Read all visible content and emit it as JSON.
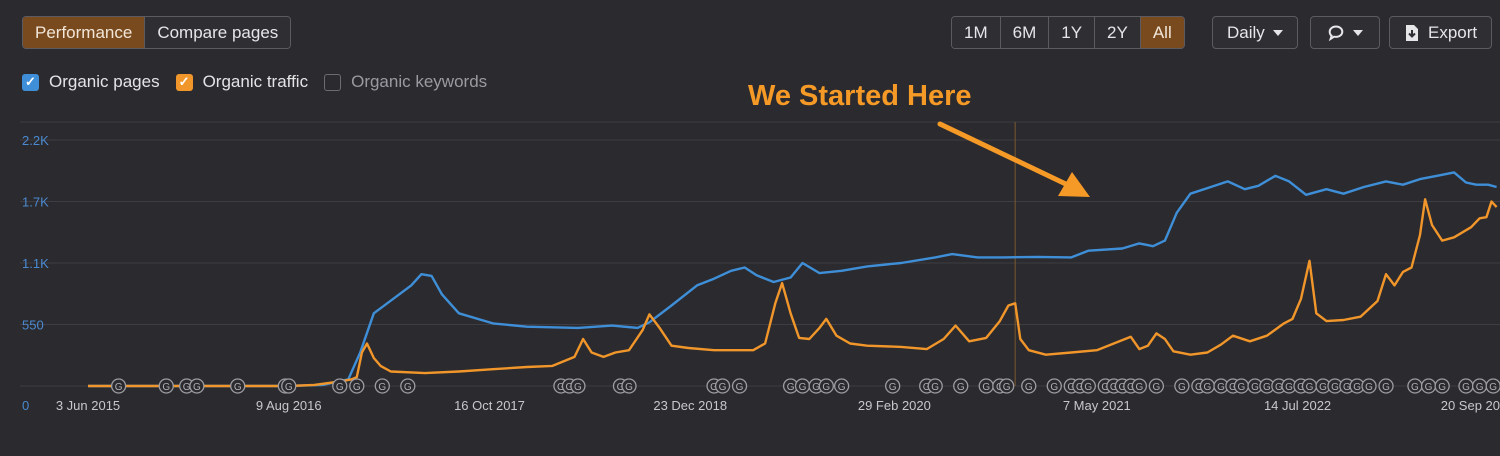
{
  "tabs": [
    {
      "label": "Performance",
      "active": true
    },
    {
      "label": "Compare pages",
      "active": false
    }
  ],
  "ranges": [
    {
      "label": "1M",
      "active": false
    },
    {
      "label": "6M",
      "active": false
    },
    {
      "label": "1Y",
      "active": false
    },
    {
      "label": "2Y",
      "active": false
    },
    {
      "label": "All",
      "active": true
    }
  ],
  "interval": {
    "label": "Daily"
  },
  "export": {
    "label": "Export"
  },
  "legend": [
    {
      "label": "Organic pages",
      "checked": true,
      "color": "#3f8fd8"
    },
    {
      "label": "Organic traffic",
      "checked": true,
      "color": "#f1962a"
    },
    {
      "label": "Organic keywords",
      "checked": false,
      "color": "#6b6b70"
    }
  ],
  "annotation": {
    "text": "We Started Here",
    "color": "#f59a26"
  },
  "chart_data": {
    "type": "line",
    "yticks": [
      "0",
      "550",
      "1.1K",
      "1.7K",
      "2.2K"
    ],
    "ytick_values": [
      0,
      550,
      1100,
      1650,
      2200
    ],
    "xticks": [
      "3 Jun 2015",
      "9 Aug 2016",
      "16 Oct 2017",
      "23 Dec 2018",
      "29 Feb 2020",
      "7 May 2021",
      "14 Jul 2022",
      "20 Sep 20"
    ],
    "x_range": [
      2015.42,
      2023.72
    ],
    "ylim": [
      0,
      2200
    ],
    "grid": true,
    "marker_x": 2020.87,
    "series": [
      {
        "name": "Organic pages",
        "color": "#3f8fd8",
        "points": [
          [
            2015.42,
            0
          ],
          [
            2016.58,
            0
          ],
          [
            2016.8,
            10
          ],
          [
            2016.95,
            60
          ],
          [
            2017.02,
            300
          ],
          [
            2017.1,
            650
          ],
          [
            2017.25,
            820
          ],
          [
            2017.32,
            900
          ],
          [
            2017.38,
            1000
          ],
          [
            2017.44,
            985
          ],
          [
            2017.5,
            820
          ],
          [
            2017.6,
            650
          ],
          [
            2017.8,
            560
          ],
          [
            2018.0,
            530
          ],
          [
            2018.3,
            520
          ],
          [
            2018.5,
            540
          ],
          [
            2018.65,
            520
          ],
          [
            2018.72,
            570
          ],
          [
            2018.85,
            720
          ],
          [
            2019.0,
            900
          ],
          [
            2019.1,
            960
          ],
          [
            2019.2,
            1030
          ],
          [
            2019.28,
            1060
          ],
          [
            2019.35,
            990
          ],
          [
            2019.45,
            930
          ],
          [
            2019.55,
            970
          ],
          [
            2019.62,
            1100
          ],
          [
            2019.72,
            1010
          ],
          [
            2019.85,
            1030
          ],
          [
            2020.0,
            1070
          ],
          [
            2020.2,
            1100
          ],
          [
            2020.4,
            1150
          ],
          [
            2020.5,
            1180
          ],
          [
            2020.65,
            1150
          ],
          [
            2020.8,
            1150
          ],
          [
            2021.0,
            1155
          ],
          [
            2021.2,
            1150
          ],
          [
            2021.3,
            1210
          ],
          [
            2021.5,
            1230
          ],
          [
            2021.6,
            1275
          ],
          [
            2021.68,
            1250
          ],
          [
            2021.75,
            1300
          ],
          [
            2021.82,
            1550
          ],
          [
            2021.9,
            1720
          ],
          [
            2022.0,
            1770
          ],
          [
            2022.12,
            1830
          ],
          [
            2022.22,
            1760
          ],
          [
            2022.3,
            1790
          ],
          [
            2022.4,
            1880
          ],
          [
            2022.48,
            1830
          ],
          [
            2022.58,
            1710
          ],
          [
            2022.7,
            1760
          ],
          [
            2022.8,
            1720
          ],
          [
            2022.92,
            1780
          ],
          [
            2023.05,
            1830
          ],
          [
            2023.15,
            1800
          ],
          [
            2023.25,
            1850
          ],
          [
            2023.35,
            1880
          ],
          [
            2023.45,
            1910
          ],
          [
            2023.52,
            1820
          ],
          [
            2023.58,
            1800
          ],
          [
            2023.65,
            1800
          ],
          [
            2023.7,
            1780
          ]
        ]
      },
      {
        "name": "Organic traffic",
        "color": "#f1962a",
        "points": [
          [
            2015.42,
            0
          ],
          [
            2016.6,
            0
          ],
          [
            2016.75,
            10
          ],
          [
            2016.9,
            40
          ],
          [
            2016.97,
            60
          ],
          [
            2017.0,
            80
          ],
          [
            2017.03,
            300
          ],
          [
            2017.06,
            380
          ],
          [
            2017.1,
            250
          ],
          [
            2017.14,
            180
          ],
          [
            2017.2,
            130
          ],
          [
            2017.4,
            115
          ],
          [
            2017.6,
            130
          ],
          [
            2017.8,
            150
          ],
          [
            2018.0,
            170
          ],
          [
            2018.15,
            180
          ],
          [
            2018.28,
            260
          ],
          [
            2018.33,
            420
          ],
          [
            2018.38,
            300
          ],
          [
            2018.45,
            260
          ],
          [
            2018.52,
            300
          ],
          [
            2018.6,
            320
          ],
          [
            2018.68,
            500
          ],
          [
            2018.72,
            640
          ],
          [
            2018.78,
            520
          ],
          [
            2018.85,
            360
          ],
          [
            2018.95,
            340
          ],
          [
            2019.1,
            320
          ],
          [
            2019.25,
            320
          ],
          [
            2019.33,
            320
          ],
          [
            2019.4,
            380
          ],
          [
            2019.46,
            740
          ],
          [
            2019.5,
            920
          ],
          [
            2019.55,
            650
          ],
          [
            2019.6,
            430
          ],
          [
            2019.66,
            420
          ],
          [
            2019.72,
            520
          ],
          [
            2019.76,
            600
          ],
          [
            2019.82,
            450
          ],
          [
            2019.9,
            380
          ],
          [
            2020.0,
            360
          ],
          [
            2020.2,
            350
          ],
          [
            2020.35,
            330
          ],
          [
            2020.45,
            420
          ],
          [
            2020.52,
            540
          ],
          [
            2020.6,
            400
          ],
          [
            2020.7,
            430
          ],
          [
            2020.78,
            580
          ],
          [
            2020.83,
            720
          ],
          [
            2020.87,
            740
          ],
          [
            2020.9,
            420
          ],
          [
            2020.95,
            320
          ],
          [
            2021.05,
            280
          ],
          [
            2021.2,
            300
          ],
          [
            2021.35,
            320
          ],
          [
            2021.45,
            380
          ],
          [
            2021.55,
            440
          ],
          [
            2021.6,
            330
          ],
          [
            2021.65,
            360
          ],
          [
            2021.7,
            470
          ],
          [
            2021.75,
            420
          ],
          [
            2021.8,
            310
          ],
          [
            2021.9,
            280
          ],
          [
            2022.0,
            300
          ],
          [
            2022.08,
            370
          ],
          [
            2022.15,
            450
          ],
          [
            2022.25,
            400
          ],
          [
            2022.35,
            450
          ],
          [
            2022.45,
            560
          ],
          [
            2022.5,
            600
          ],
          [
            2022.55,
            780
          ],
          [
            2022.6,
            1120
          ],
          [
            2022.64,
            650
          ],
          [
            2022.7,
            580
          ],
          [
            2022.8,
            590
          ],
          [
            2022.9,
            620
          ],
          [
            2023.0,
            760
          ],
          [
            2023.05,
            1000
          ],
          [
            2023.1,
            900
          ],
          [
            2023.15,
            1020
          ],
          [
            2023.2,
            1060
          ],
          [
            2023.25,
            1350
          ],
          [
            2023.28,
            1670
          ],
          [
            2023.32,
            1440
          ],
          [
            2023.38,
            1300
          ],
          [
            2023.45,
            1330
          ],
          [
            2023.55,
            1420
          ],
          [
            2023.6,
            1500
          ],
          [
            2023.64,
            1510
          ],
          [
            2023.67,
            1650
          ],
          [
            2023.7,
            1600
          ]
        ]
      }
    ],
    "event_markers": [
      2015.6,
      2015.88,
      2016.0,
      2016.06,
      2016.3,
      2016.58,
      2016.6,
      2016.9,
      2017.0,
      2017.15,
      2017.3,
      2018.2,
      2018.25,
      2018.3,
      2018.55,
      2018.6,
      2019.1,
      2019.15,
      2019.25,
      2019.55,
      2019.62,
      2019.7,
      2019.76,
      2019.85,
      2020.15,
      2020.35,
      2020.4,
      2020.55,
      2020.7,
      2020.78,
      2020.82,
      2020.95,
      2021.1,
      2021.2,
      2021.25,
      2021.3,
      2021.4,
      2021.45,
      2021.5,
      2021.55,
      2021.6,
      2021.7,
      2021.85,
      2021.95,
      2022.0,
      2022.08,
      2022.15,
      2022.2,
      2022.28,
      2022.35,
      2022.42,
      2022.48,
      2022.55,
      2022.6,
      2022.68,
      2022.75,
      2022.82,
      2022.88,
      2022.95,
      2023.05,
      2023.22,
      2023.3,
      2023.38,
      2023.52,
      2023.6,
      2023.68
    ]
  }
}
